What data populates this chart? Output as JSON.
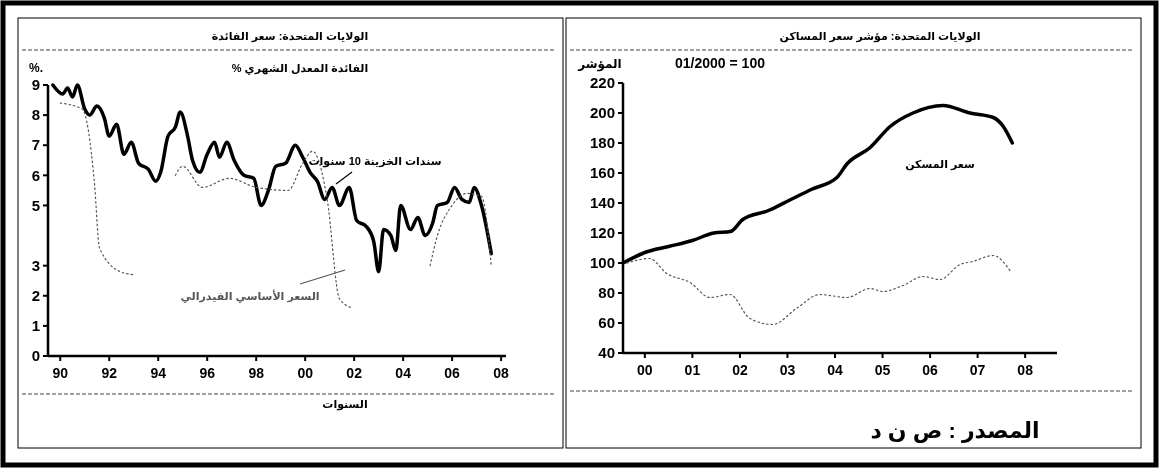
{
  "chart_data": [
    {
      "type": "line",
      "title": "الولايات المتحدة: سعر الفائدة",
      "subtitle": "الفائدة المعدل الشهري %",
      "ylabel": "%.",
      "xlabel": "السنوات",
      "xlim": [
        1989.5,
        2008.2
      ],
      "xticks": [
        {
          "value": 1990,
          "label": "90"
        },
        {
          "value": 1992,
          "label": "92"
        },
        {
          "value": 1994,
          "label": "94"
        },
        {
          "value": 1996,
          "label": "96"
        },
        {
          "value": 1998,
          "label": "98"
        },
        {
          "value": 2000,
          "label": "00"
        },
        {
          "value": 2002,
          "label": "02"
        },
        {
          "value": 2004,
          "label": "04"
        },
        {
          "value": 2006,
          "label": "06"
        },
        {
          "value": 2008,
          "label": "08"
        }
      ],
      "ylim": [
        0,
        9
      ],
      "yticks": [
        0,
        1,
        2,
        3,
        5,
        6,
        7,
        8,
        9
      ],
      "grid": false,
      "series": [
        {
          "name": "سندات الخزينة 10 سنوات",
          "color": "#000000",
          "line_style": "solid",
          "x": [
            1989.7,
            1990.1,
            1990.3,
            1990.5,
            1990.7,
            1991.0,
            1991.2,
            1991.5,
            1991.8,
            1992.0,
            1992.3,
            1992.6,
            1992.9,
            1993.2,
            1993.6,
            1993.9,
            1994.1,
            1994.4,
            1994.7,
            1994.9,
            1995.2,
            1995.4,
            1995.7,
            1996.0,
            1996.3,
            1996.5,
            1996.8,
            1997.1,
            1997.5,
            1997.9,
            1998.2,
            1998.5,
            1998.8,
            1999.2,
            1999.6,
            1999.9,
            2000.2,
            2000.5,
            2000.8,
            2001.1,
            2001.4,
            2001.8,
            2002.1,
            2002.5,
            2002.8,
            2003.0,
            2003.2,
            2003.5,
            2003.7,
            2003.9,
            2004.3,
            2004.6,
            2004.9,
            2005.2,
            2005.4,
            2005.8,
            2006.1,
            2006.4,
            2006.7,
            2006.9,
            2007.2,
            2007.6
          ],
          "values": [
            9.0,
            8.7,
            8.9,
            8.6,
            9.0,
            8.2,
            8.0,
            8.3,
            7.9,
            7.3,
            7.7,
            6.7,
            7.1,
            6.4,
            6.2,
            5.8,
            6.1,
            7.3,
            7.6,
            8.1,
            7.3,
            6.5,
            6.1,
            6.7,
            7.1,
            6.6,
            7.1,
            6.5,
            6.0,
            5.9,
            5.0,
            5.5,
            6.3,
            6.4,
            7.0,
            6.6,
            6.1,
            5.8,
            5.2,
            5.6,
            5.0,
            5.6,
            4.5,
            4.3,
            3.8,
            2.8,
            4.2,
            4.0,
            3.5,
            5.0,
            4.2,
            4.6,
            4.0,
            4.4,
            5.0,
            5.1,
            5.6,
            5.2,
            5.1,
            5.6,
            5.0,
            3.4
          ]
        },
        {
          "name": "السعر الأساسي الفيدرالي",
          "color": "#555555",
          "line_style": "dotted",
          "x": [
            1990.0,
            1990.9,
            1991.4,
            1991.6,
            1992.45,
            1993.0,
            1993.3,
            1994.4,
            1994.7,
            1995.0,
            1995.8,
            1996.9,
            1998.0,
            1999.3,
            1999.9,
            2000.3,
            2000.9,
            2001.4,
            2001.9,
            2002.2,
            2004.9,
            2005.1,
            2005.4,
            2006.0,
            2006.6,
            2007.2,
            2007.6
          ],
          "values": [
            8.4,
            8.2,
            5.7,
            3.6,
            2.8,
            2.7,
            null,
            null,
            6.0,
            6.3,
            5.6,
            5.9,
            5.6,
            5.5,
            6.4,
            6.8,
            5.2,
            1.9,
            1.6,
            null,
            null,
            3.0,
            4.0,
            5.0,
            5.4,
            5.3,
            3.0
          ]
        }
      ]
    },
    {
      "type": "line",
      "title": "الولايات المتحدة: مؤشر سعر المساكن",
      "ylabel": "المؤشر",
      "annotations": [
        "01/2000 = 100",
        "المصدر : ص ن د"
      ],
      "xlim": [
        1999.54,
        2008.67
      ],
      "xticks": [
        {
          "value": 2000,
          "label": "00"
        },
        {
          "value": 2001,
          "label": "01"
        },
        {
          "value": 2002,
          "label": "02"
        },
        {
          "value": 2003,
          "label": "03"
        },
        {
          "value": 2004,
          "label": "04"
        },
        {
          "value": 2005,
          "label": "05"
        },
        {
          "value": 2006,
          "label": "06"
        },
        {
          "value": 2007,
          "label": "07"
        },
        {
          "value": 2008,
          "label": "08"
        }
      ],
      "ylim": [
        40,
        220
      ],
      "yticks": [
        40,
        60,
        80,
        100,
        120,
        140,
        160,
        180,
        200,
        220
      ],
      "grid": false,
      "series": [
        {
          "name": "سعر المسكن",
          "color": "#000000",
          "line_style": "solid",
          "x": [
            1999.54,
            2000.0,
            2000.5,
            2001.0,
            2001.45,
            2001.8,
            2002.06,
            2002.6,
            2003.05,
            2003.5,
            2004.04,
            2004.25,
            2004.74,
            2005.16,
            2005.64,
            2006.27,
            2006.84,
            2007.33,
            2007.54,
            2007.73
          ],
          "values": [
            100,
            107,
            111,
            115,
            120,
            121,
            129,
            135,
            142,
            149,
            157,
            166,
            177,
            191,
            200,
            205,
            200,
            197,
            191,
            180
          ]
        },
        {
          "color": "#555555",
          "line_style": "dotted",
          "x": [
            1999.62,
            2000.1,
            2000.46,
            2000.95,
            2001.37,
            2001.79,
            2002.21,
            2002.69,
            2003.2,
            2003.68,
            2004.25,
            2004.74,
            2005.0,
            2005.43,
            2005.85,
            2006.21,
            2006.63,
            2006.9,
            2007.33,
            2007.68
          ],
          "values": [
            100,
            103,
            93,
            87,
            77,
            79,
            63,
            59,
            70,
            79,
            77,
            83,
            81,
            85,
            91,
            89,
            99,
            101,
            105,
            95
          ]
        }
      ]
    }
  ]
}
